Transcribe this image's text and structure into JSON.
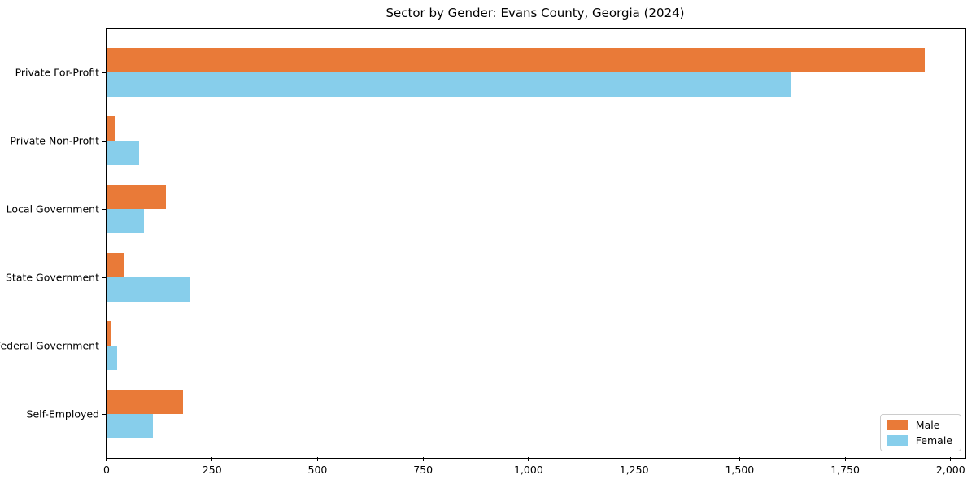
{
  "chart_data": {
    "type": "bar",
    "orientation": "horizontal",
    "title": "Sector by Gender: Evans County, Georgia (2024)",
    "categories": [
      "Private For-Profit",
      "Private Non-Profit",
      "Local Government",
      "State Government",
      "Federal Government",
      "Self-Employed"
    ],
    "series": [
      {
        "name": "Male",
        "color": "#E97A38",
        "values": [
          1938,
          20,
          140,
          41,
          9,
          181
        ]
      },
      {
        "name": "Female",
        "color": "#87CEEB",
        "values": [
          1622,
          78,
          88,
          197,
          26,
          110
        ]
      }
    ],
    "xlim": [
      0,
      2035
    ],
    "x_ticks": [
      0,
      250,
      500,
      750,
      1000,
      1250,
      1500,
      1750,
      2000
    ],
    "x_tick_labels": [
      "0",
      "250",
      "500",
      "750",
      "1,000",
      "1,250",
      "1,500",
      "1,750",
      "2,000"
    ],
    "xlabel": "",
    "ylabel": "",
    "grid": false,
    "legend_position": "lower right",
    "frame": true,
    "background_color": "#ffffff",
    "text_color": "#000000"
  }
}
